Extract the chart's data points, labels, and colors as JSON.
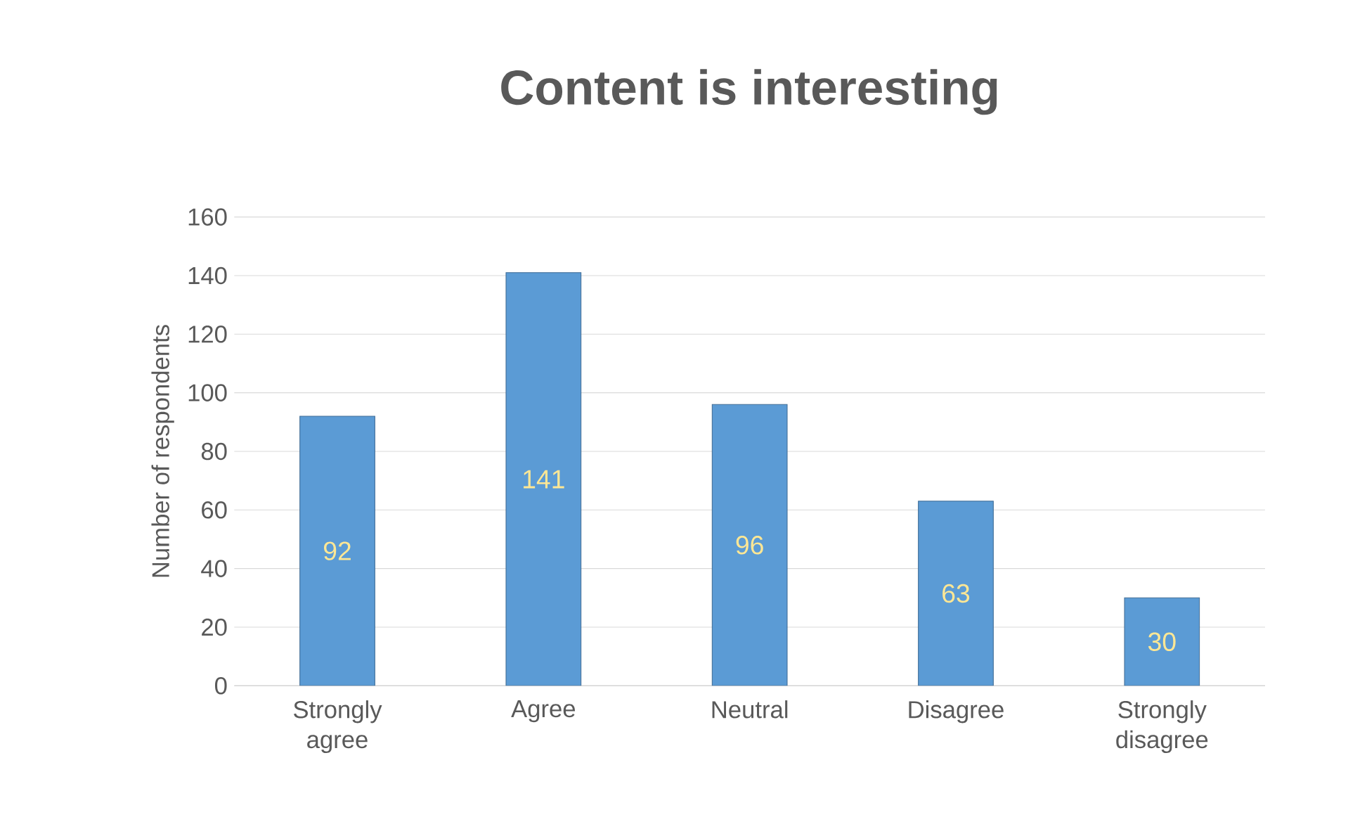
{
  "chart_data": {
    "type": "bar",
    "title": "Content is interesting",
    "ylabel": "Number of respondents",
    "categories": [
      "Strongly agree",
      "Agree",
      "Neutral",
      "Disagree",
      "Strongly disagree"
    ],
    "values": [
      92,
      141,
      96,
      63,
      30
    ],
    "color": "#5b9bd5",
    "data_labels": true,
    "ylim": [
      0,
      160
    ],
    "yticks": [
      0,
      20,
      40,
      60,
      80,
      100,
      120,
      140,
      160
    ],
    "grid": "y"
  }
}
